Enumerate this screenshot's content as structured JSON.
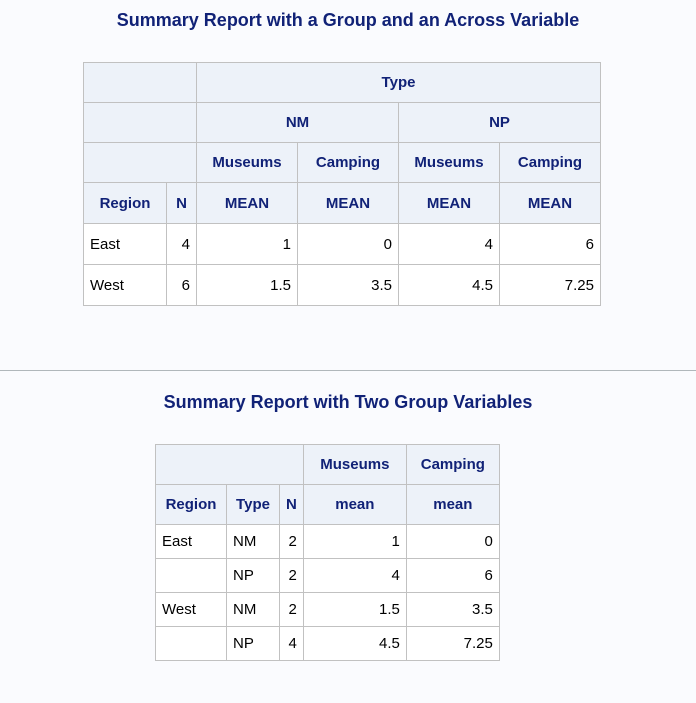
{
  "report1": {
    "title": "Summary Report with a Group and an Across Variable",
    "header": {
      "across_var": "Type",
      "groups": [
        "NM",
        "NP"
      ],
      "sub_columns": [
        "Museums",
        "Camping",
        "Museums",
        "Camping"
      ],
      "col_region": "Region",
      "col_n": "N",
      "stats": [
        "MEAN",
        "MEAN",
        "MEAN",
        "MEAN"
      ]
    },
    "rows": [
      {
        "region": "East",
        "n": "4",
        "values": [
          "1",
          "0",
          "4",
          "6"
        ]
      },
      {
        "region": "West",
        "n": "6",
        "values": [
          "1.5",
          "3.5",
          "4.5",
          "7.25"
        ]
      }
    ]
  },
  "report2": {
    "title": "Summary Report with Two Group Variables",
    "header": {
      "columns": [
        "Museums",
        "Camping"
      ],
      "col_region": "Region",
      "col_type": "Type",
      "col_n": "N",
      "stats": [
        "mean",
        "mean"
      ]
    },
    "rows": [
      {
        "region": "East",
        "type": "NM",
        "n": "2",
        "values": [
          "1",
          "0"
        ]
      },
      {
        "region": "",
        "type": "NP",
        "n": "2",
        "values": [
          "4",
          "6"
        ]
      },
      {
        "region": "West",
        "type": "NM",
        "n": "2",
        "values": [
          "1.5",
          "3.5"
        ]
      },
      {
        "region": "",
        "type": "NP",
        "n": "4",
        "values": [
          "4.5",
          "7.25"
        ]
      }
    ]
  },
  "colors": {
    "title": "#112277",
    "header_bg": "#edf2f9",
    "border": "#c1c1c1",
    "page_bg": "#fafbfe"
  }
}
